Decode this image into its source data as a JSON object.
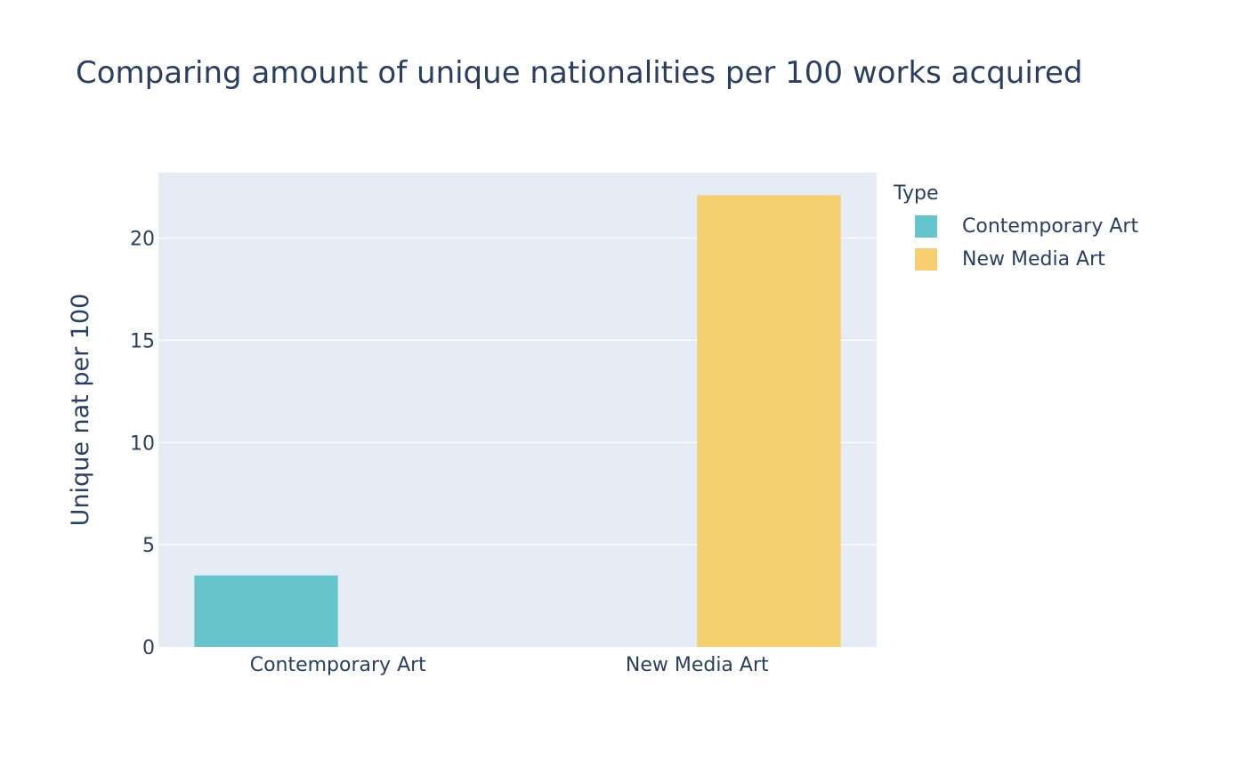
{
  "chart_data": {
    "type": "bar",
    "title": "Comparing amount of unique nationalities per 100 works acquired",
    "xlabel": "",
    "ylabel": "Unique nat per 100",
    "categories": [
      "Contemporary Art",
      "New Media Art"
    ],
    "series": [
      {
        "name": "Contemporary Art",
        "color": "#66c5cc",
        "values": [
          3.5,
          null
        ]
      },
      {
        "name": "New Media Art",
        "color": "#f6cf71",
        "values": [
          null,
          22.1
        ]
      }
    ],
    "ylim": [
      0,
      23.2
    ],
    "yticks": [
      0,
      5,
      10,
      15,
      20
    ],
    "grid": true,
    "legend": {
      "title": "Type",
      "position": "right"
    },
    "colors": {
      "plot_bg": "#e5ecf6",
      "grid": "#ffffff",
      "text": "#2a3f5f"
    }
  }
}
